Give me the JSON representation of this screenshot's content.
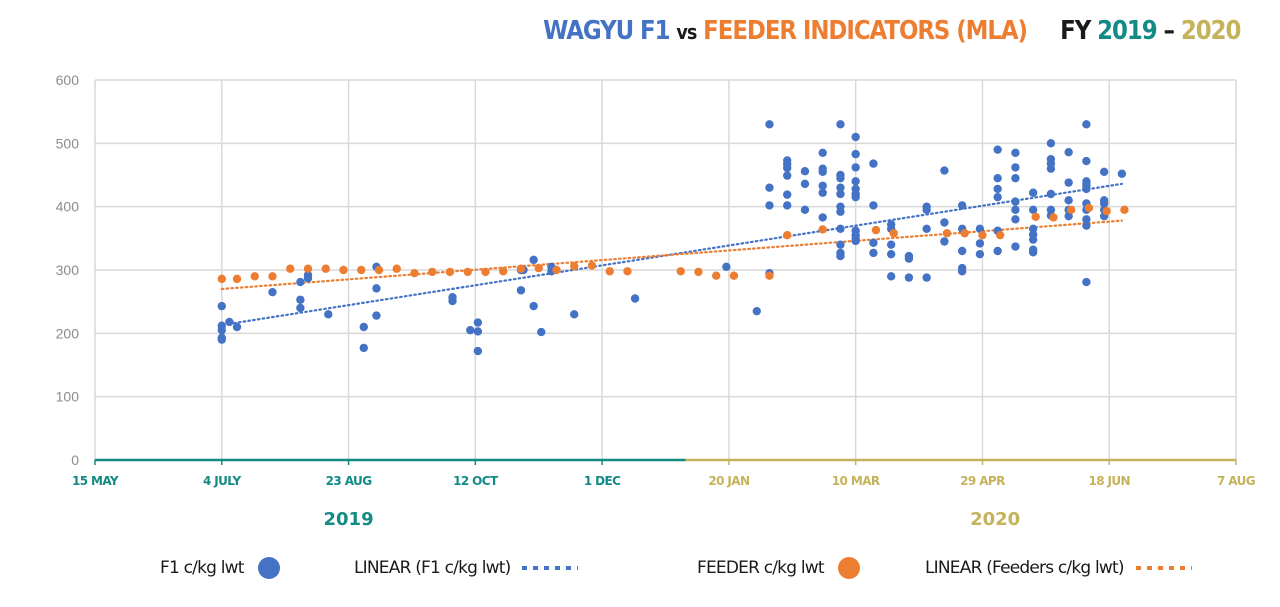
{
  "title": {
    "part1": "WAGYU F1",
    "part2": "vs",
    "part3": "FEEDER INDICATORS (MLA)",
    "part4": "FY",
    "part5": "2019",
    "part6": "–",
    "part7": "2020"
  },
  "colors": {
    "f1": "#4472c4",
    "feeder": "#ed7d31",
    "year2019": "#138a84",
    "year2020": "#c4b35a",
    "grid": "#d9d9d9",
    "title_dark": "#1a1a1a"
  },
  "legend": [
    {
      "label": "F1 c/kg lwt",
      "kind": "marker",
      "series": "f1"
    },
    {
      "label": "LINEAR (F1 c/kg lwt)",
      "kind": "trendline",
      "series": "f1"
    },
    {
      "label": "FEEDER c/kg lwt",
      "kind": "marker",
      "series": "feeder"
    },
    {
      "label": "LINEAR (Feeders c/kg lwt)",
      "kind": "trendline",
      "series": "feeder"
    }
  ],
  "chart_data": {
    "type": "scatter",
    "title": "WAGYU F1 vs FEEDER INDICATORS (MLA) FY 2019 - 2020",
    "xlabel": "",
    "ylabel": "",
    "x_units": "days since 15 May 2019",
    "xlim": [
      0,
      450
    ],
    "ylim": [
      0,
      600
    ],
    "yticks": [
      0,
      100,
      200,
      300,
      400,
      500,
      600
    ],
    "xticks": [
      {
        "day": 0,
        "label": "15 MAY",
        "year": "2019"
      },
      {
        "day": 50,
        "label": "4 JULY",
        "year": "2019"
      },
      {
        "day": 100,
        "label": "23 AUG",
        "year": "2019"
      },
      {
        "day": 150,
        "label": "12 OCT",
        "year": "2019"
      },
      {
        "day": 200,
        "label": "1 DEC",
        "year": "2019"
      },
      {
        "day": 250,
        "label": "20 JAN",
        "year": "2020"
      },
      {
        "day": 300,
        "label": "10 MAR",
        "year": "2020"
      },
      {
        "day": 350,
        "label": "29 APR",
        "year": "2020"
      },
      {
        "day": 400,
        "label": "18 JUN",
        "year": "2020"
      },
      {
        "day": 450,
        "label": "7 AUG",
        "year": "2020"
      }
    ],
    "year_split_day": 233,
    "year_labels": [
      {
        "label": "2019",
        "day": 100
      },
      {
        "label": "2020",
        "day": 355
      }
    ],
    "grid": true,
    "legend_position": "bottom",
    "series": [
      {
        "name": "F1 c/kg lwt",
        "key": "f1",
        "points": [
          [
            50,
            243
          ],
          [
            50,
            212
          ],
          [
            50,
            205
          ],
          [
            50,
            193
          ],
          [
            50,
            190
          ],
          [
            53,
            218
          ],
          [
            56,
            210
          ],
          [
            70,
            265
          ],
          [
            81,
            253
          ],
          [
            81,
            240
          ],
          [
            81,
            281
          ],
          [
            84,
            287
          ],
          [
            84,
            292
          ],
          [
            92,
            230
          ],
          [
            106,
            210
          ],
          [
            106,
            177
          ],
          [
            111,
            228
          ],
          [
            111,
            271
          ],
          [
            111,
            305
          ],
          [
            141,
            251
          ],
          [
            141,
            257
          ],
          [
            148,
            205
          ],
          [
            151,
            217
          ],
          [
            151,
            203
          ],
          [
            151,
            172
          ],
          [
            168,
            300
          ],
          [
            168,
            268
          ],
          [
            169,
            300
          ],
          [
            173,
            243
          ],
          [
            173,
            316
          ],
          [
            176,
            202
          ],
          [
            180,
            305
          ],
          [
            180,
            298
          ],
          [
            189,
            230
          ],
          [
            213,
            255
          ],
          [
            249,
            305
          ],
          [
            261,
            235
          ],
          [
            266,
            530
          ],
          [
            266,
            430
          ],
          [
            266,
            402
          ],
          [
            266,
            295
          ],
          [
            273,
            473
          ],
          [
            273,
            467
          ],
          [
            273,
            461
          ],
          [
            273,
            449
          ],
          [
            273,
            419
          ],
          [
            273,
            402
          ],
          [
            280,
            436
          ],
          [
            280,
            456
          ],
          [
            280,
            395
          ],
          [
            287,
            485
          ],
          [
            287,
            455
          ],
          [
            287,
            460
          ],
          [
            287,
            433
          ],
          [
            287,
            422
          ],
          [
            287,
            383
          ],
          [
            294,
            530
          ],
          [
            294,
            450
          ],
          [
            294,
            445
          ],
          [
            294,
            430
          ],
          [
            294,
            420
          ],
          [
            294,
            400
          ],
          [
            294,
            392
          ],
          [
            294,
            365
          ],
          [
            294,
            340
          ],
          [
            294,
            327
          ],
          [
            294,
            322
          ],
          [
            300,
            510
          ],
          [
            300,
            483
          ],
          [
            300,
            462
          ],
          [
            300,
            440
          ],
          [
            300,
            428
          ],
          [
            300,
            420
          ],
          [
            300,
            415
          ],
          [
            300,
            362
          ],
          [
            300,
            355
          ],
          [
            300,
            350
          ],
          [
            300,
            346
          ],
          [
            307,
            468
          ],
          [
            307,
            402
          ],
          [
            307,
            343
          ],
          [
            307,
            327
          ],
          [
            314,
            372
          ],
          [
            314,
            365
          ],
          [
            314,
            340
          ],
          [
            314,
            325
          ],
          [
            314,
            290
          ],
          [
            321,
            322
          ],
          [
            321,
            318
          ],
          [
            321,
            288
          ],
          [
            328,
            400
          ],
          [
            328,
            395
          ],
          [
            328,
            365
          ],
          [
            328,
            288
          ],
          [
            335,
            457
          ],
          [
            335,
            375
          ],
          [
            335,
            345
          ],
          [
            342,
            402
          ],
          [
            342,
            365
          ],
          [
            342,
            330
          ],
          [
            342,
            303
          ],
          [
            342,
            298
          ],
          [
            349,
            365
          ],
          [
            349,
            342
          ],
          [
            349,
            325
          ],
          [
            356,
            490
          ],
          [
            356,
            445
          ],
          [
            356,
            428
          ],
          [
            356,
            415
          ],
          [
            356,
            362
          ],
          [
            356,
            330
          ],
          [
            363,
            485
          ],
          [
            363,
            462
          ],
          [
            363,
            445
          ],
          [
            363,
            408
          ],
          [
            363,
            395
          ],
          [
            363,
            380
          ],
          [
            363,
            337
          ],
          [
            370,
            422
          ],
          [
            370,
            395
          ],
          [
            370,
            365
          ],
          [
            370,
            356
          ],
          [
            370,
            348
          ],
          [
            370,
            332
          ],
          [
            370,
            328
          ],
          [
            377,
            500
          ],
          [
            377,
            475
          ],
          [
            377,
            468
          ],
          [
            377,
            460
          ],
          [
            377,
            420
          ],
          [
            377,
            395
          ],
          [
            377,
            386
          ],
          [
            384,
            486
          ],
          [
            384,
            438
          ],
          [
            384,
            410
          ],
          [
            384,
            395
          ],
          [
            384,
            385
          ],
          [
            391,
            530
          ],
          [
            391,
            472
          ],
          [
            391,
            440
          ],
          [
            391,
            436
          ],
          [
            391,
            433
          ],
          [
            391,
            428
          ],
          [
            391,
            405
          ],
          [
            391,
            395
          ],
          [
            391,
            380
          ],
          [
            391,
            370
          ],
          [
            391,
            281
          ],
          [
            398,
            455
          ],
          [
            398,
            410
          ],
          [
            398,
            405
          ],
          [
            398,
            395
          ],
          [
            398,
            385
          ],
          [
            405,
            452
          ]
        ],
        "trendline": {
          "type": "linear",
          "from": [
            53,
            215
          ],
          "to": [
            405,
            436
          ]
        }
      },
      {
        "name": "FEEDER c/kg lwt",
        "key": "feeder",
        "points": [
          [
            50,
            286
          ],
          [
            56,
            286
          ],
          [
            63,
            290
          ],
          [
            70,
            290
          ],
          [
            77,
            302
          ],
          [
            84,
            302
          ],
          [
            91,
            302
          ],
          [
            98,
            300
          ],
          [
            105,
            300
          ],
          [
            112,
            300
          ],
          [
            119,
            302
          ],
          [
            126,
            295
          ],
          [
            133,
            297
          ],
          [
            140,
            297
          ],
          [
            147,
            297
          ],
          [
            154,
            297
          ],
          [
            161,
            298
          ],
          [
            168,
            302
          ],
          [
            175,
            303
          ],
          [
            182,
            300
          ],
          [
            189,
            306
          ],
          [
            196,
            307
          ],
          [
            203,
            298
          ],
          [
            210,
            298
          ],
          [
            231,
            298
          ],
          [
            238,
            297
          ],
          [
            245,
            291
          ],
          [
            252,
            291
          ],
          [
            266,
            291
          ],
          [
            273,
            355
          ],
          [
            287,
            364
          ],
          [
            308,
            363
          ],
          [
            315,
            358
          ],
          [
            336,
            358
          ],
          [
            343,
            358
          ],
          [
            350,
            355
          ],
          [
            357,
            355
          ],
          [
            371,
            384
          ],
          [
            378,
            383
          ],
          [
            385,
            395
          ],
          [
            392,
            398
          ],
          [
            399,
            393
          ],
          [
            406,
            395
          ]
        ],
        "trendline": {
          "type": "linear",
          "from": [
            50,
            270
          ],
          "to": [
            405,
            378
          ]
        }
      }
    ]
  }
}
